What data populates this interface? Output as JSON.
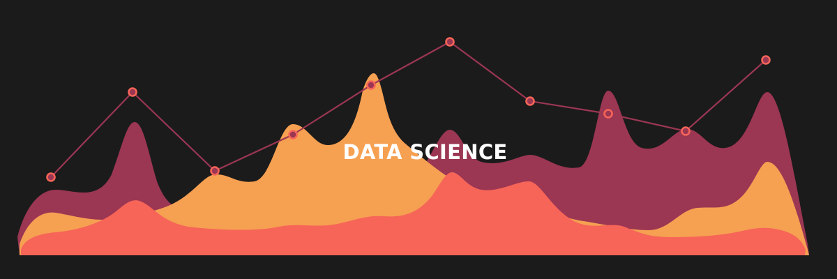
{
  "title": "DATA SCIENCE",
  "colors": {
    "background": "#1b1b1b",
    "wave_back": "#9b3653",
    "wave_middle": "#f6a052",
    "wave_front": "#f66558",
    "line": "#9b3653",
    "marker": "#f66558",
    "title": "#ffffff"
  },
  "line_series": {
    "marker_count": 10
  }
}
